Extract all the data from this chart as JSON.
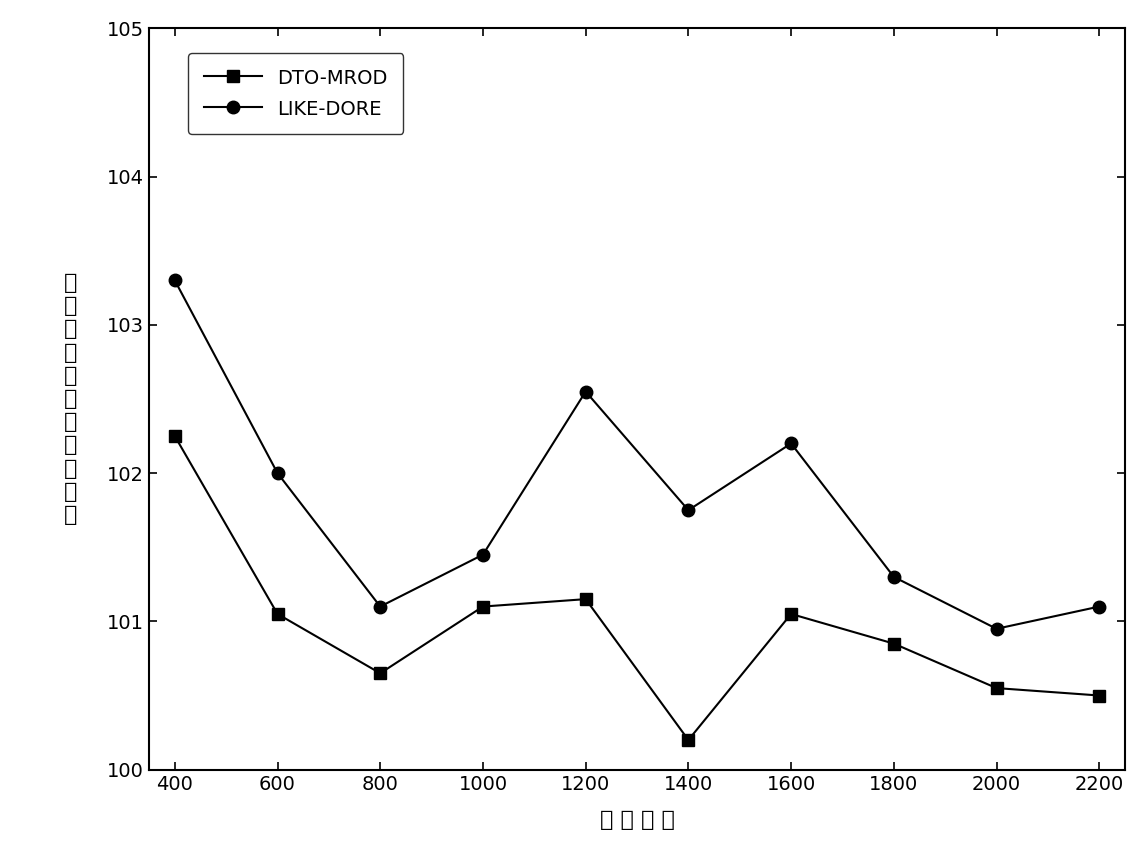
{
  "x": [
    400,
    600,
    800,
    1000,
    1200,
    1400,
    1600,
    1800,
    2000,
    2200
  ],
  "dto_mrod": [
    102.25,
    101.05,
    100.65,
    101.1,
    101.15,
    100.2,
    101.05,
    100.85,
    100.55,
    100.5
  ],
  "like_dore": [
    103.3,
    102.0,
    101.1,
    101.45,
    102.55,
    101.75,
    102.2,
    101.3,
    100.95,
    101.1
  ],
  "xlabel": "节 点 数 量",
  "ylabel_chars": [
    "（",
    "比",
    "特",
    "每",
    "秒",
    "纳",
    "）",
    " ",
    "时",
    "延",
    "均",
    "平"
  ],
  "legend_dto": "DTO-MROD",
  "legend_like": "LIKE-DORE",
  "ylim": [
    100,
    105
  ],
  "xlim": [
    350,
    2250
  ],
  "yticks": [
    100,
    101,
    102,
    103,
    104,
    105
  ],
  "xticks": [
    400,
    600,
    800,
    1000,
    1200,
    1400,
    1600,
    1800,
    2000,
    2200
  ],
  "line_color": "#000000",
  "bg_color": "#ffffff",
  "label_fontsize": 16,
  "tick_fontsize": 14,
  "legend_fontsize": 14
}
